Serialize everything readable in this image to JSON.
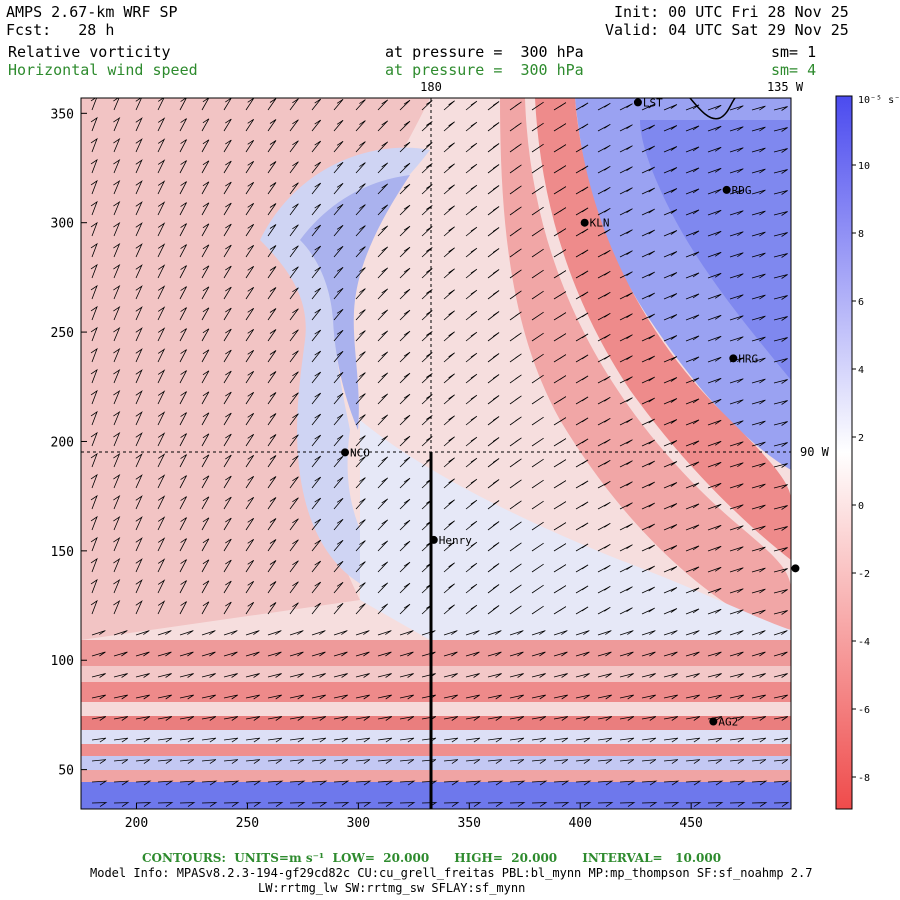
{
  "header": {
    "title": "AMPS 2.67-km WRF SP",
    "forecast": "Fcst:   28 h",
    "init": "Init: 00 UTC Fri 28 Nov 25",
    "valid": "Valid: 04 UTC Sat 29 Nov 25",
    "field1": {
      "name": "Relative vorticity",
      "level": "at pressure =  300 hPa",
      "smooth": "sm= 1"
    },
    "field2": {
      "name": "Horizontal wind speed",
      "level": "at pressure =  300 hPa",
      "smooth": "sm= 4"
    }
  },
  "map": {
    "x_ticks": [
      "200",
      "250",
      "300",
      "350",
      "400",
      "450"
    ],
    "y_ticks": [
      "350",
      "300",
      "250",
      "200",
      "150",
      "100",
      "50"
    ],
    "meridian_labels": {
      "top": "180",
      "top_right": "135 W",
      "right": "90 W"
    },
    "stations": [
      {
        "name": "LST",
        "x": 426,
        "y": 355
      },
      {
        "name": "RDG",
        "x": 466,
        "y": 315
      },
      {
        "name": "KLN",
        "x": 402,
        "y": 300
      },
      {
        "name": "HRG",
        "x": 469,
        "y": 238
      },
      {
        "name": "NCO",
        "x": 294,
        "y": 195
      },
      {
        "name": "Henry",
        "x": 334,
        "y": 155
      },
      {
        "name": "AG2",
        "x": 460,
        "y": 72
      },
      {
        "name": "",
        "x": 497,
        "y": 142
      }
    ],
    "colors": {
      "positive": "#5a5aef",
      "negative": "#ef5a5a",
      "neutral": "#ffffff",
      "green": "#2e8b2e"
    }
  },
  "colorbar": {
    "unit": "10⁻⁵ s⁻¹",
    "ticks": [
      "10",
      "8",
      "6",
      "4",
      "2",
      "0",
      "-2",
      "-4",
      "-6",
      "-8"
    ]
  },
  "footer": {
    "contours": "CONTOURS:  UNITS=m s⁻¹  LOW=  20.000      HIGH=  20.000      INTERVAL=   10.000",
    "model_info": "Model Info: MPASv8.2.3-194-gf29cd82c CU:cu_grell_freitas PBL:bl_mynn MP:mp_thompson SF:sf_noahmp 2.7",
    "model_info2": "LW:rrtmg_lw SW:rrtmg_sw SFLAY:sf_mynn"
  }
}
